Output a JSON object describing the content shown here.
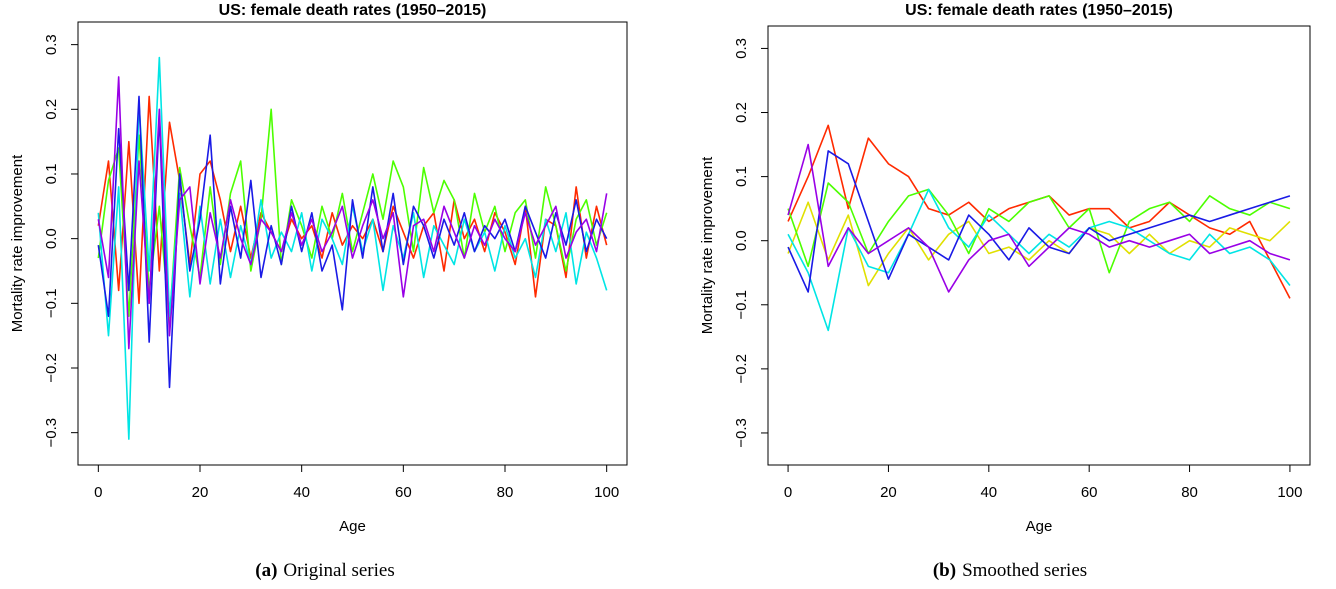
{
  "chart_data": [
    {
      "type": "line",
      "title": "US: female death rates (1950–2015)",
      "x_label": "Age",
      "y_label": "Mortality rate improvement",
      "caption_label": "(a)",
      "caption": "Original series",
      "xlim": [
        -4,
        104
      ],
      "ylim": [
        -0.35,
        0.335
      ],
      "xticks": [
        0,
        20,
        40,
        60,
        80,
        100
      ],
      "yticks": [
        {
          "value": -0.3,
          "label": "−0.3"
        },
        {
          "value": -0.2,
          "label": "−0.2"
        },
        {
          "value": -0.1,
          "label": "−0.1"
        },
        {
          "value": 0,
          "label": "0.0"
        },
        0.1,
        0.2,
        0.3
      ],
      "x": [
        0,
        2,
        4,
        6,
        8,
        10,
        12,
        14,
        16,
        18,
        20,
        22,
        24,
        26,
        28,
        30,
        32,
        34,
        36,
        38,
        40,
        42,
        44,
        46,
        48,
        50,
        52,
        54,
        56,
        58,
        60,
        62,
        64,
        66,
        68,
        70,
        72,
        74,
        76,
        78,
        80,
        82,
        84,
        86,
        88,
        90,
        92,
        94,
        96,
        98,
        100
      ],
      "series": [
        {
          "color": "#FF2A00",
          "values": [
            0.02,
            0.12,
            -0.08,
            0.15,
            -0.1,
            0.22,
            -0.05,
            0.18,
            0.09,
            -0.04,
            0.1,
            0.12,
            0.06,
            -0.02,
            0.05,
            -0.03,
            0.04,
            0.01,
            -0.02,
            0.03,
            0.0,
            0.02,
            -0.03,
            0.04,
            -0.01,
            0.02,
            0.0,
            0.03,
            -0.02,
            0.05,
            0.01,
            -0.03,
            0.02,
            0.04,
            -0.05,
            0.06,
            0.0,
            0.03,
            -0.02,
            0.04,
            0.01,
            -0.04,
            0.05,
            -0.09,
            0.03,
            0.02,
            -0.06,
            0.08,
            -0.03,
            0.05,
            -0.01
          ]
        },
        {
          "color": "#4CFF00",
          "values": [
            -0.03,
            0.09,
            0.14,
            -0.12,
            0.16,
            -0.08,
            0.05,
            -0.13,
            0.11,
            0.02,
            -0.06,
            0.08,
            -0.04,
            0.07,
            0.12,
            -0.05,
            0.03,
            0.2,
            -0.04,
            0.06,
            0.02,
            -0.03,
            0.05,
            0.0,
            0.07,
            -0.02,
            0.04,
            0.1,
            0.03,
            0.12,
            0.08,
            -0.02,
            0.11,
            0.04,
            0.09,
            0.06,
            -0.03,
            0.07,
            0.01,
            0.05,
            -0.02,
            0.04,
            0.06,
            -0.03,
            0.08,
            0.02,
            -0.05,
            0.03,
            0.06,
            -0.01,
            0.04
          ]
        },
        {
          "color": "#00E5E5",
          "values": [
            0.04,
            -0.15,
            0.08,
            -0.31,
            0.21,
            -0.05,
            0.28,
            -0.12,
            0.07,
            -0.09,
            0.05,
            -0.07,
            0.03,
            -0.06,
            0.02,
            -0.04,
            0.06,
            -0.03,
            0.01,
            -0.02,
            0.04,
            -0.05,
            0.03,
            0.0,
            -0.04,
            0.05,
            -0.02,
            0.03,
            -0.08,
            0.02,
            -0.03,
            0.04,
            -0.06,
            0.02,
            -0.01,
            -0.04,
            0.03,
            -0.02,
            0.01,
            -0.05,
            0.02,
            -0.03,
            0.0,
            -0.06,
            0.03,
            -0.02,
            0.04,
            -0.07,
            0.01,
            -0.03,
            -0.08
          ]
        },
        {
          "color": "#1A1AE6",
          "values": [
            -0.01,
            -0.12,
            0.17,
            -0.08,
            0.22,
            -0.16,
            0.19,
            -0.23,
            0.1,
            -0.05,
            0.03,
            0.16,
            -0.07,
            0.05,
            -0.03,
            0.09,
            -0.06,
            0.02,
            -0.04,
            0.05,
            -0.02,
            0.04,
            -0.05,
            -0.01,
            -0.11,
            0.06,
            -0.03,
            0.08,
            -0.02,
            0.07,
            -0.04,
            0.05,
            0.02,
            -0.03,
            0.03,
            -0.01,
            0.04,
            -0.02,
            0.02,
            0.0,
            0.03,
            -0.02,
            0.05,
            0.01,
            -0.03,
            0.04,
            -0.01,
            0.06,
            -0.02,
            0.03,
            0.0
          ]
        },
        {
          "color": "#9900E6",
          "values": [
            0.03,
            -0.06,
            0.25,
            -0.17,
            0.12,
            -0.1,
            0.2,
            -0.15,
            0.06,
            0.08,
            -0.07,
            0.04,
            -0.03,
            0.06,
            0.0,
            -0.04,
            0.03,
            0.01,
            -0.02,
            0.04,
            -0.01,
            0.03,
            -0.02,
            0.01,
            0.05,
            -0.03,
            0.02,
            0.06,
            0.0,
            0.04,
            -0.09,
            0.02,
            0.03,
            -0.02,
            0.05,
            0.01,
            -0.03,
            0.02,
            -0.01,
            0.03,
            0.0,
            -0.02,
            0.04,
            -0.01,
            0.02,
            0.05,
            -0.03,
            0.01,
            0.03,
            -0.02,
            0.07
          ]
        }
      ]
    },
    {
      "type": "line",
      "title": "US: female death rates (1950–2015)",
      "x_label": "Age",
      "y_label": "Mortality rate improvement",
      "caption_label": "(b)",
      "caption": "Smoothed series",
      "xlim": [
        -4,
        104
      ],
      "ylim": [
        -0.35,
        0.335
      ],
      "xticks": [
        0,
        20,
        40,
        60,
        80,
        100
      ],
      "yticks": [
        {
          "value": -0.3,
          "label": "−0.3"
        },
        {
          "value": -0.2,
          "label": "−0.2"
        },
        {
          "value": -0.1,
          "label": "−0.1"
        },
        {
          "value": 0,
          "label": "0.0"
        },
        0.1,
        0.2,
        0.3
      ],
      "x": [
        0,
        4,
        8,
        12,
        16,
        20,
        24,
        28,
        32,
        36,
        40,
        44,
        48,
        52,
        56,
        60,
        64,
        68,
        72,
        76,
        80,
        84,
        88,
        92,
        96,
        100
      ],
      "series": [
        {
          "color": "#FF2A00",
          "values": [
            0.03,
            0.1,
            0.18,
            0.05,
            0.16,
            0.12,
            0.1,
            0.05,
            0.04,
            0.06,
            0.03,
            0.05,
            0.06,
            0.07,
            0.04,
            0.05,
            0.05,
            0.02,
            0.03,
            0.06,
            0.04,
            0.02,
            0.01,
            0.03,
            -0.03,
            -0.09
          ]
        },
        {
          "color": "#E0E000",
          "values": [
            -0.02,
            0.06,
            -0.03,
            0.04,
            -0.07,
            -0.02,
            0.02,
            -0.03,
            0.01,
            0.03,
            -0.02,
            -0.01,
            -0.03,
            0.0,
            -0.02,
            0.02,
            0.01,
            -0.02,
            0.01,
            -0.02,
            0.0,
            -0.01,
            0.02,
            0.01,
            0.0,
            0.03
          ]
        },
        {
          "color": "#4CFF00",
          "values": [
            0.05,
            -0.04,
            0.09,
            0.06,
            -0.02,
            0.03,
            0.07,
            0.08,
            0.04,
            -0.02,
            0.05,
            0.03,
            0.06,
            0.07,
            0.02,
            0.05,
            -0.05,
            0.03,
            0.05,
            0.06,
            0.03,
            0.07,
            0.05,
            0.04,
            0.06,
            0.05
          ]
        },
        {
          "color": "#00E5E5",
          "values": [
            0.01,
            -0.05,
            -0.14,
            0.02,
            -0.04,
            -0.05,
            0.01,
            0.08,
            0.02,
            -0.01,
            0.04,
            0.01,
            -0.02,
            0.01,
            -0.01,
            0.02,
            0.03,
            0.02,
            0.0,
            -0.02,
            -0.03,
            0.01,
            -0.02,
            -0.01,
            -0.03,
            -0.07
          ]
        },
        {
          "color": "#1A1AE6",
          "values": [
            -0.01,
            -0.08,
            0.14,
            0.12,
            0.03,
            -0.06,
            0.01,
            -0.01,
            -0.03,
            0.04,
            0.01,
            -0.03,
            0.02,
            -0.01,
            -0.02,
            0.02,
            0.0,
            0.01,
            0.02,
            0.03,
            0.04,
            0.03,
            0.04,
            0.05,
            0.06,
            0.07
          ]
        },
        {
          "color": "#9900E6",
          "values": [
            0.04,
            0.15,
            -0.04,
            0.02,
            -0.02,
            0.0,
            0.02,
            -0.01,
            -0.08,
            -0.03,
            0.0,
            0.01,
            -0.04,
            -0.01,
            0.02,
            0.01,
            -0.01,
            0.0,
            -0.01,
            0.0,
            0.01,
            -0.02,
            -0.01,
            0.0,
            -0.02,
            -0.03
          ]
        }
      ]
    }
  ]
}
